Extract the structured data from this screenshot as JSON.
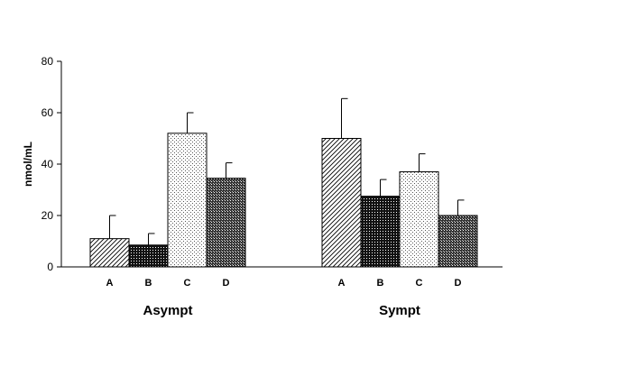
{
  "chart_data": {
    "type": "bar",
    "ylabel": "nmol/mL",
    "ylim": [
      0,
      80
    ],
    "yticks": [
      0,
      20,
      40,
      60,
      80
    ],
    "groups": [
      {
        "label": "Asympt",
        "bars": [
          {
            "category": "A",
            "value": 11,
            "error": 9,
            "pattern": "diagonal-hatch"
          },
          {
            "category": "B",
            "value": 8.5,
            "error": 4.5,
            "pattern": "dense-dark-dots"
          },
          {
            "category": "C",
            "value": 52,
            "error": 8,
            "pattern": "light-dots"
          },
          {
            "category": "D",
            "value": 34.5,
            "error": 6,
            "pattern": "dark-crosshatch"
          }
        ]
      },
      {
        "label": "Sympt",
        "bars": [
          {
            "category": "A",
            "value": 50,
            "error": 15.5,
            "pattern": "diagonal-hatch"
          },
          {
            "category": "B",
            "value": 27.5,
            "error": 6.5,
            "pattern": "dense-dark-dots"
          },
          {
            "category": "C",
            "value": 37,
            "error": 7,
            "pattern": "light-dots"
          },
          {
            "category": "D",
            "value": 20,
            "error": 6,
            "pattern": "dark-crosshatch"
          }
        ]
      }
    ],
    "grid": false,
    "legend": "none"
  }
}
